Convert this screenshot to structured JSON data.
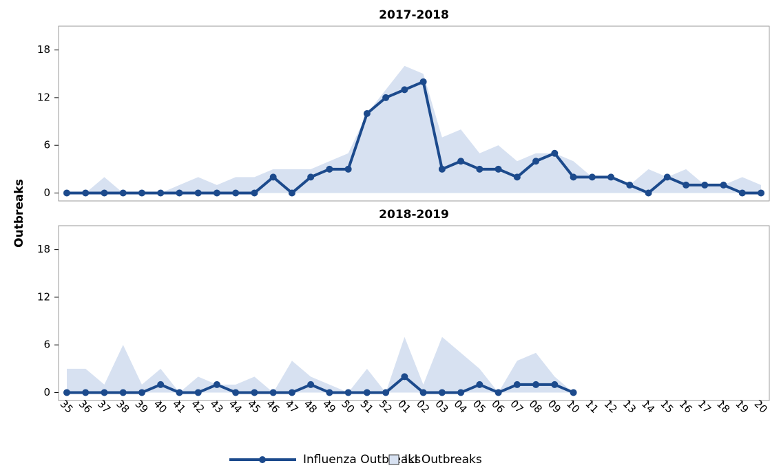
{
  "chart_data": {
    "type": "line",
    "y_label": "Outbreaks",
    "categories": [
      "35",
      "36",
      "37",
      "38",
      "39",
      "40",
      "41",
      "42",
      "43",
      "44",
      "45",
      "46",
      "47",
      "48",
      "49",
      "50",
      "51",
      "52",
      "01",
      "02",
      "03",
      "04",
      "05",
      "06",
      "07",
      "08",
      "09",
      "10",
      "11",
      "12",
      "13",
      "14",
      "15",
      "16",
      "17",
      "18",
      "19",
      "20"
    ],
    "ylim": [
      -1,
      21
    ],
    "yticks": [
      0,
      6,
      12,
      18
    ],
    "panels": [
      {
        "title": "2017-2018",
        "series": [
          {
            "name": "ILI Outbreaks",
            "kind": "area",
            "color": "#d7e1f1",
            "values": [
              0,
              0,
              2,
              0,
              0,
              0,
              1,
              2,
              1,
              2,
              2,
              3,
              3,
              3,
              4,
              5,
              10,
              13,
              16,
              15,
              7,
              8,
              5,
              6,
              4,
              5,
              5,
              4,
              2,
              2,
              1,
              3,
              2,
              3,
              1,
              1,
              2,
              1
            ]
          },
          {
            "name": "Influenza Outbreaks",
            "kind": "line",
            "color": "#1c4a8c",
            "values": [
              0,
              0,
              0,
              0,
              0,
              0,
              0,
              0,
              0,
              0,
              0,
              2,
              0,
              2,
              3,
              3,
              10,
              12,
              13,
              14,
              3,
              4,
              3,
              3,
              2,
              4,
              5,
              2,
              2,
              2,
              1,
              0,
              2,
              1,
              1,
              1,
              0,
              0
            ]
          }
        ]
      },
      {
        "title": "2018-2019",
        "series": [
          {
            "name": "ILI Outbreaks",
            "kind": "area",
            "color": "#d7e1f1",
            "values": [
              3,
              3,
              1,
              6,
              1,
              3,
              0,
              2,
              1,
              1,
              2,
              0,
              4,
              2,
              1,
              0,
              3,
              0,
              7,
              1,
              7,
              5,
              3,
              0,
              4,
              5,
              2,
              0,
              null,
              null,
              null,
              null,
              null,
              null,
              null,
              null,
              null,
              null
            ]
          },
          {
            "name": "Influenza Outbreaks",
            "kind": "line",
            "color": "#1c4a8c",
            "values": [
              0,
              0,
              0,
              0,
              0,
              1,
              0,
              0,
              1,
              0,
              0,
              0,
              0,
              1,
              0,
              0,
              0,
              0,
              2,
              0,
              0,
              0,
              1,
              0,
              1,
              1,
              1,
              0,
              null,
              null,
              null,
              null,
              null,
              null,
              null,
              null,
              null,
              null
            ]
          }
        ]
      }
    ]
  }
}
